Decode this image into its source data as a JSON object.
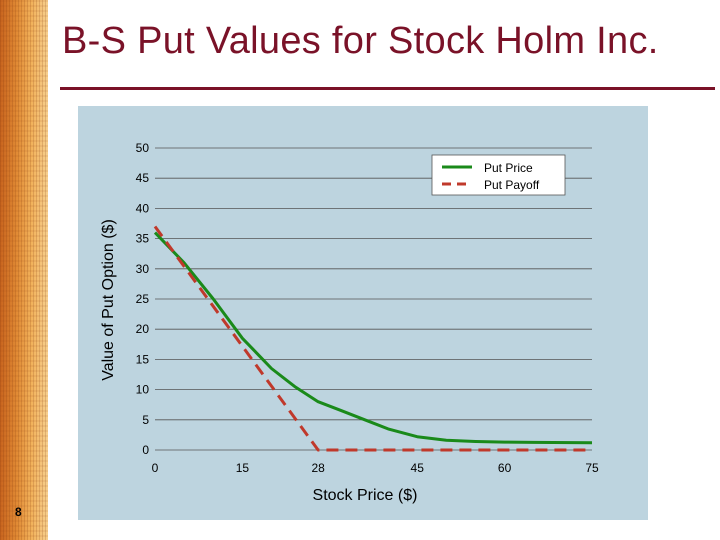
{
  "slide": {
    "title": "B-S Put Values for Stock Holm Inc.",
    "page_number": "8",
    "colors": {
      "title": "#7a1228",
      "panel": "#bdd4df",
      "band": "#e08a34"
    }
  },
  "chart_data": {
    "type": "line",
    "title": "",
    "xlabel": "Stock Price ($)",
    "ylabel": "Value of Put Option ($)",
    "x_ticks": [
      {
        "value": 0,
        "label": "0"
      },
      {
        "value": 15,
        "label": "15"
      },
      {
        "value": 28,
        "label": "28"
      },
      {
        "value": 45,
        "label": "45"
      },
      {
        "value": 60,
        "label": "60"
      },
      {
        "value": 75,
        "label": "75"
      }
    ],
    "y_ticks": [
      0,
      5,
      10,
      15,
      20,
      25,
      30,
      35,
      40,
      45,
      50
    ],
    "ylim": [
      0,
      50
    ],
    "xlim": [
      0,
      75
    ],
    "legend_position": "top-right",
    "series": [
      {
        "name": "Put Price",
        "color": "#1a8a1a",
        "style": "solid",
        "x": [
          0,
          5,
          10,
          15,
          18,
          20,
          24,
          28,
          32,
          36,
          40,
          45,
          50,
          55,
          60,
          65,
          75
        ],
        "y": [
          36,
          31,
          25,
          18.5,
          15.5,
          13.5,
          10.5,
          8,
          6.5,
          5,
          3.5,
          2.2,
          1.6,
          1.4,
          1.3,
          1.25,
          1.2
        ]
      },
      {
        "name": "Put Payoff",
        "color": "#c0392b",
        "style": "dashed",
        "x": [
          0,
          28,
          45,
          60,
          75
        ],
        "y": [
          37,
          0,
          0,
          0,
          0
        ]
      }
    ]
  }
}
